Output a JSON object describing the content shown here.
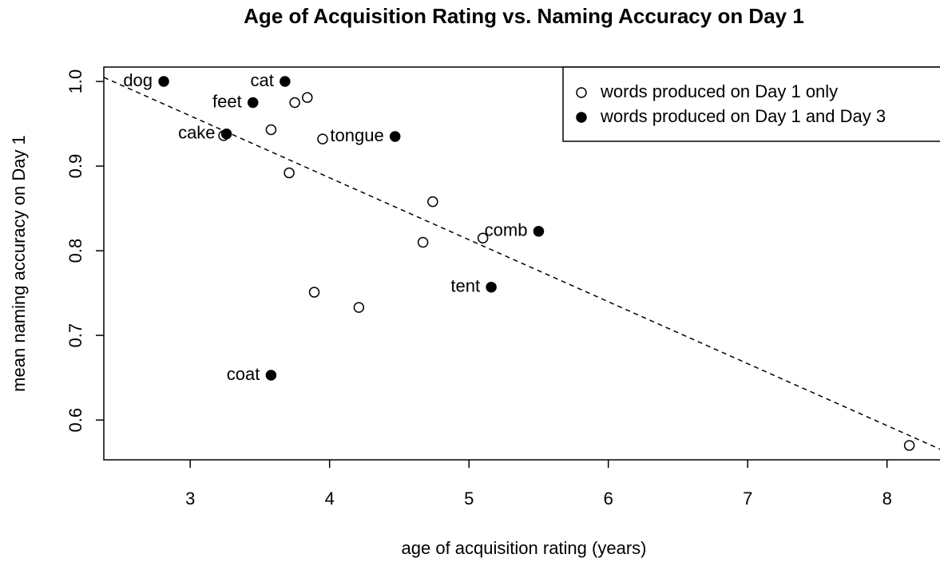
{
  "chart_data": {
    "type": "scatter",
    "title": "Age of Acquisition Rating vs. Naming Accuracy on Day 1",
    "x_label": "age of acquisition rating (years)",
    "y_label": "mean naming accuracy on Day 1",
    "xlim": [
      2.38,
      8.38
    ],
    "ylim": [
      0.553,
      1.017
    ],
    "xticks": [
      3,
      4,
      5,
      6,
      7,
      8
    ],
    "yticks": [
      0.6,
      0.7,
      0.8,
      0.9,
      {
        "value": 1,
        "label": "1.0"
      }
    ],
    "legend": "topright",
    "trendline": {
      "slope": -0.0732,
      "intercept": 1.179
    },
    "series": [
      {
        "name": "words produced on Day 1 only",
        "color": "#000000",
        "filled": false,
        "x": [
          3.84,
          3.75,
          3.58,
          3.24,
          3.95,
          3.71,
          4.74,
          4.67,
          5.1,
          3.89,
          4.21,
          8.16
        ],
        "values": [
          0.981,
          0.975,
          0.943,
          0.936,
          0.932,
          0.892,
          0.858,
          0.81,
          0.815,
          0.751,
          0.733,
          0.57
        ]
      },
      {
        "name": "words produced on Day 1 and Day 3",
        "color": "#000000",
        "filled": true,
        "x": [
          2.81,
          3.68,
          3.45,
          3.26,
          4.47,
          5.5,
          5.16,
          3.58
        ],
        "values": [
          1.0,
          1.0,
          0.975,
          0.938,
          0.935,
          0.823,
          0.757,
          0.653
        ],
        "labels": [
          "dog",
          "cat",
          "feet",
          "cake",
          "tongue",
          "comb",
          "tent",
          "coat"
        ]
      }
    ]
  }
}
